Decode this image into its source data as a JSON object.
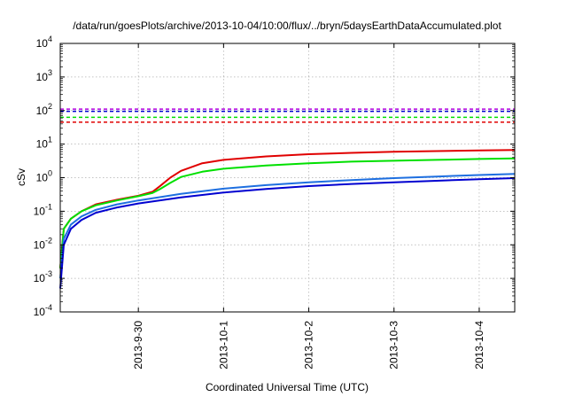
{
  "chart_data": {
    "type": "line",
    "title": "/data/run/goesPlots/archive/2013-10-04/10:00/flux/../bryn/5daysEarthDataAccumulated.plot",
    "xlabel": "Coordinated Universal Time (UTC)",
    "ylabel": "cSv",
    "x_scale": "time",
    "y_scale": "log",
    "xlim": [
      "2013-09-29T02:00",
      "2013-10-04T10:00"
    ],
    "ylim": [
      0.0001,
      10000
    ],
    "grid": true,
    "x_tick_labels": [
      "2013-9-30",
      "2013-10-1",
      "2013-10-2",
      "2013-10-3",
      "2013-10-4"
    ],
    "x_ticks": [
      "2013-09-30T00:00",
      "2013-10-01T00:00",
      "2013-10-02T00:00",
      "2013-10-03T00:00",
      "2013-10-04T00:00"
    ],
    "y_tick_labels": [
      {
        "base": "10",
        "exp": "4"
      },
      {
        "base": "10",
        "exp": "3"
      },
      {
        "base": "10",
        "exp": "2"
      },
      {
        "base": "10",
        "exp": "1"
      },
      {
        "base": "10",
        "exp": "0"
      },
      {
        "base": "10",
        "exp": "-1"
      },
      {
        "base": "10",
        "exp": "-2"
      },
      {
        "base": "10",
        "exp": "-3"
      },
      {
        "base": "10",
        "exp": "-4"
      }
    ],
    "y_ticks": [
      10000,
      1000,
      100,
      10,
      1,
      0.1,
      0.01,
      0.001,
      0.0001
    ],
    "series": [
      {
        "color": "#e00000",
        "x": [
          "2013-09-29T02:00",
          "2013-09-29T03:00",
          "2013-09-29T05:00",
          "2013-09-29T08:00",
          "2013-09-29T12:00",
          "2013-09-29T18:00",
          "2013-09-30T00:00",
          "2013-09-30T04:00",
          "2013-09-30T06:00",
          "2013-09-30T09:00",
          "2013-09-30T12:00",
          "2013-09-30T18:00",
          "2013-10-01T00:00",
          "2013-10-01T12:00",
          "2013-10-02T00:00",
          "2013-10-02T12:00",
          "2013-10-03T00:00",
          "2013-10-03T12:00",
          "2013-10-04T00:00",
          "2013-10-04T10:00"
        ],
        "y": [
          0.002,
          0.03,
          0.06,
          0.1,
          0.16,
          0.22,
          0.29,
          0.38,
          0.55,
          1.0,
          1.6,
          2.7,
          3.4,
          4.3,
          5.0,
          5.5,
          5.9,
          6.2,
          6.5,
          6.7
        ]
      },
      {
        "color": "#00e000",
        "x": [
          "2013-09-29T02:00",
          "2013-09-29T03:00",
          "2013-09-29T05:00",
          "2013-09-29T08:00",
          "2013-09-29T12:00",
          "2013-09-29T18:00",
          "2013-09-30T00:00",
          "2013-09-30T04:00",
          "2013-09-30T06:00",
          "2013-09-30T09:00",
          "2013-09-30T12:00",
          "2013-09-30T18:00",
          "2013-10-01T00:00",
          "2013-10-01T12:00",
          "2013-10-02T00:00",
          "2013-10-02T12:00",
          "2013-10-03T00:00",
          "2013-10-03T12:00",
          "2013-10-04T00:00",
          "2013-10-04T10:00"
        ],
        "y": [
          0.002,
          0.03,
          0.06,
          0.1,
          0.15,
          0.21,
          0.28,
          0.35,
          0.45,
          0.7,
          1.05,
          1.5,
          1.85,
          2.3,
          2.7,
          3.0,
          3.2,
          3.4,
          3.6,
          3.75
        ]
      },
      {
        "color": "#1e6fe0",
        "x": [
          "2013-09-29T02:00",
          "2013-09-29T03:00",
          "2013-09-29T05:00",
          "2013-09-29T08:00",
          "2013-09-29T12:00",
          "2013-09-29T18:00",
          "2013-09-30T00:00",
          "2013-09-30T12:00",
          "2013-10-01T00:00",
          "2013-10-01T12:00",
          "2013-10-02T00:00",
          "2013-10-02T12:00",
          "2013-10-03T00:00",
          "2013-10-03T12:00",
          "2013-10-04T00:00",
          "2013-10-04T10:00"
        ],
        "y": [
          0.001,
          0.015,
          0.04,
          0.07,
          0.11,
          0.16,
          0.21,
          0.33,
          0.47,
          0.6,
          0.73,
          0.85,
          0.97,
          1.08,
          1.2,
          1.3
        ]
      },
      {
        "color": "#0000d0",
        "x": [
          "2013-09-29T02:00",
          "2013-09-29T03:00",
          "2013-09-29T05:00",
          "2013-09-29T08:00",
          "2013-09-29T12:00",
          "2013-09-29T18:00",
          "2013-09-30T00:00",
          "2013-09-30T12:00",
          "2013-10-01T00:00",
          "2013-10-01T12:00",
          "2013-10-02T00:00",
          "2013-10-02T12:00",
          "2013-10-03T00:00",
          "2013-10-03T12:00",
          "2013-10-04T00:00",
          "2013-10-04T10:00"
        ],
        "y": [
          0.0005,
          0.01,
          0.03,
          0.055,
          0.09,
          0.13,
          0.17,
          0.26,
          0.36,
          0.46,
          0.56,
          0.65,
          0.73,
          0.81,
          0.9,
          0.97
        ]
      }
    ],
    "reference_lines": [
      {
        "color": "#b000e0",
        "value": 110,
        "style": "dashed"
      },
      {
        "color": "#0000d0",
        "value": 95,
        "style": "dashed"
      },
      {
        "color": "#00e000",
        "value": 63,
        "style": "dashed"
      },
      {
        "color": "#e00000",
        "value": 45,
        "style": "dashed"
      }
    ]
  }
}
